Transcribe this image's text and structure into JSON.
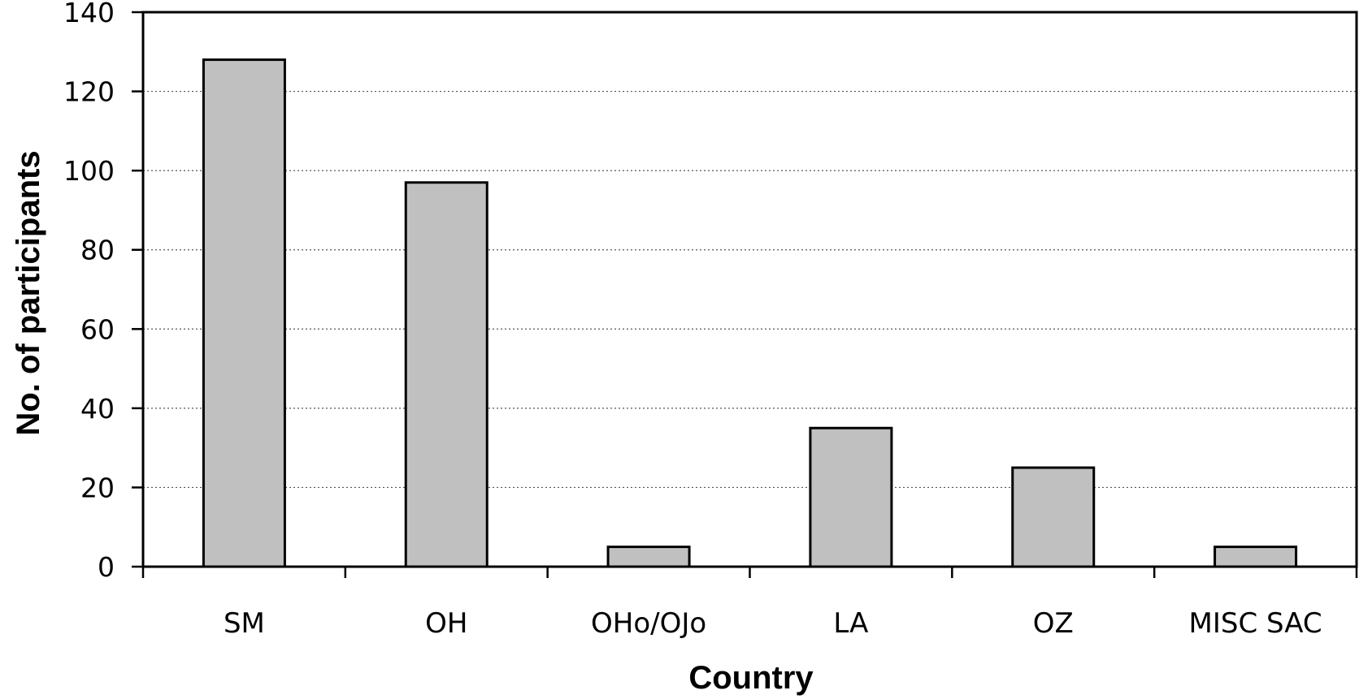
{
  "chart_data": {
    "type": "bar",
    "categories": [
      "SM",
      "OH",
      "OHo/OJo",
      "LA",
      "OZ",
      "MISC SAC"
    ],
    "values": [
      128,
      97,
      5,
      35,
      25,
      5
    ],
    "xlabel": "Country",
    "ylabel": "No. of participants",
    "ylim": [
      0,
      140
    ],
    "yticks": [
      0,
      20,
      40,
      60,
      80,
      100,
      120,
      140
    ],
    "grid": true,
    "grid_style": "dotted horizontal",
    "bar_color": "#c0c0c0",
    "bar_edge_color": "#000000",
    "legend": "none"
  }
}
